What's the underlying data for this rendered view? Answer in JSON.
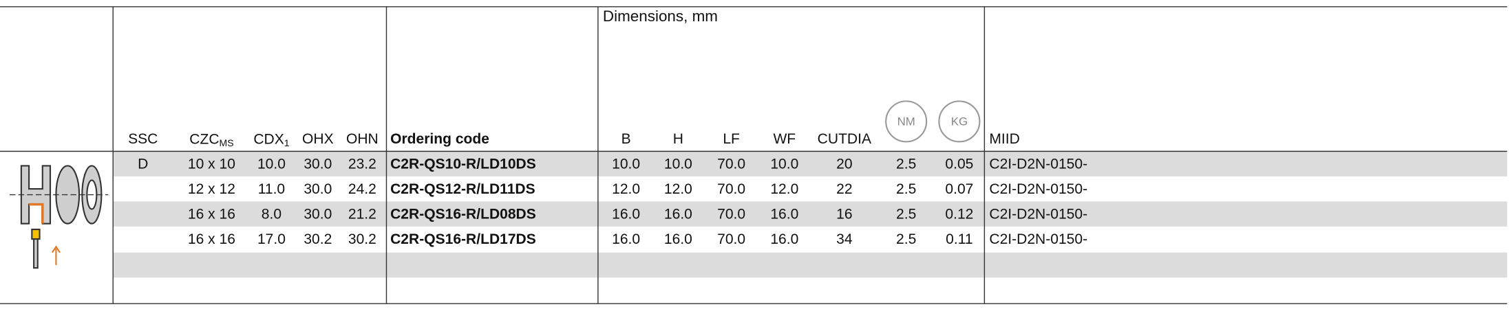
{
  "table": {
    "group_header": "Dimensions, mm",
    "headers": [
      "SSC",
      {
        "main": "CZC",
        "sub": "MS"
      },
      {
        "main": "CDX",
        "sub": "1"
      },
      "OHX",
      "OHN",
      "Ordering code",
      "B",
      "H",
      "LF",
      "WF",
      "CUTDIA",
      "NM",
      "KG",
      "MIID"
    ],
    "rows": [
      {
        "ssc": "D",
        "cells": [
          "10 x 10",
          "10.0",
          "30.0",
          "23.2",
          "C2R-QS10-R/LD10DS",
          "10.0",
          "10.0",
          "70.0",
          "10.0",
          "20",
          "2.5",
          "0.05",
          "C2I-D2N-0150-"
        ]
      },
      {
        "cells": [
          "12 x 12",
          "11.0",
          "30.0",
          "24.2",
          "C2R-QS12-R/LD11DS",
          "12.0",
          "12.0",
          "70.0",
          "12.0",
          "22",
          "2.5",
          "0.07",
          "C2I-D2N-0150-"
        ]
      },
      {
        "cells": [
          "16 x 16",
          "8.0",
          "30.0",
          "21.2",
          "C2R-QS16-R/LD08DS",
          "16.0",
          "16.0",
          "70.0",
          "16.0",
          "16",
          "2.5",
          "0.12",
          "C2I-D2N-0150-"
        ]
      },
      {
        "cells": [
          "16 x 16",
          "17.0",
          "30.2",
          "30.2",
          "C2R-QS16-R/LD17DS",
          "16.0",
          "16.0",
          "70.0",
          "16.0",
          "34",
          "2.5",
          "0.11",
          "C2I-D2N-0150-"
        ]
      }
    ]
  }
}
